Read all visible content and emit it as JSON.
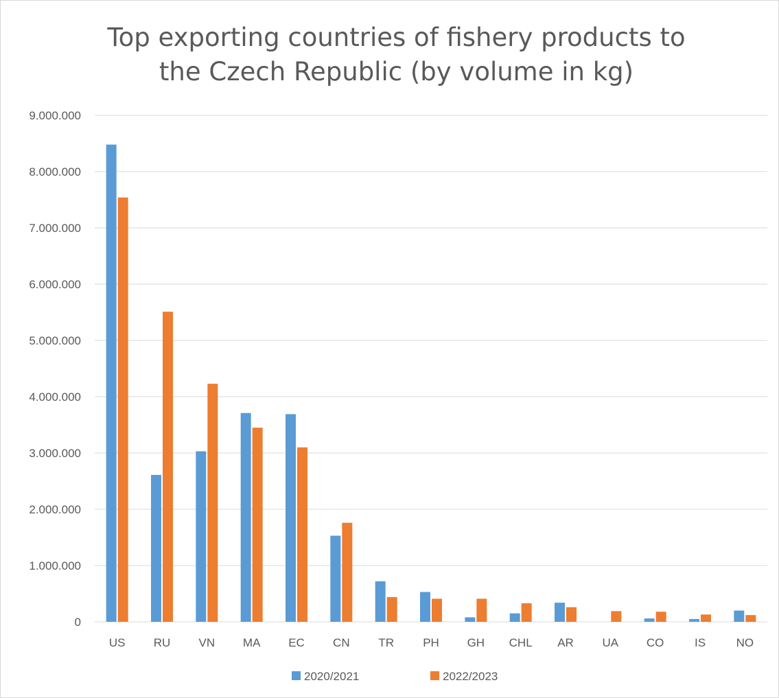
{
  "chart_data": {
    "type": "bar",
    "title_line1": "Top exporting countries of fishery products to",
    "title_line2": "the Czech Republic (by volume in kg)",
    "categories": [
      "US",
      "RU",
      "VN",
      "MA",
      "EC",
      "CN",
      "TR",
      "PH",
      "GH",
      "CHL",
      "AR",
      "UA",
      "CO",
      "IS",
      "NO"
    ],
    "series": [
      {
        "name": "2020/2021",
        "color": "#5b9bd5",
        "values": [
          8480000,
          2610000,
          3030000,
          3710000,
          3690000,
          1530000,
          720000,
          530000,
          80000,
          150000,
          340000,
          0,
          60000,
          50000,
          200000
        ]
      },
      {
        "name": "2022/2023",
        "color": "#ed7d31",
        "values": [
          7540000,
          5510000,
          4230000,
          3450000,
          3100000,
          1760000,
          440000,
          410000,
          410000,
          330000,
          260000,
          190000,
          180000,
          130000,
          120000
        ]
      }
    ],
    "ylim": [
      0,
      9000000
    ],
    "yticks": [
      0,
      1000000,
      2000000,
      3000000,
      4000000,
      5000000,
      6000000,
      7000000,
      8000000,
      9000000
    ],
    "ytick_labels": [
      "0",
      "1.000.000",
      "2.000.000",
      "3.000.000",
      "4.000.000",
      "5.000.000",
      "6.000.000",
      "7.000.000",
      "8.000.000",
      "9.000.000"
    ],
    "grid": true,
    "legend_position": "bottom",
    "gridline_color": "#d9d9d9",
    "text_color": "#595959"
  }
}
